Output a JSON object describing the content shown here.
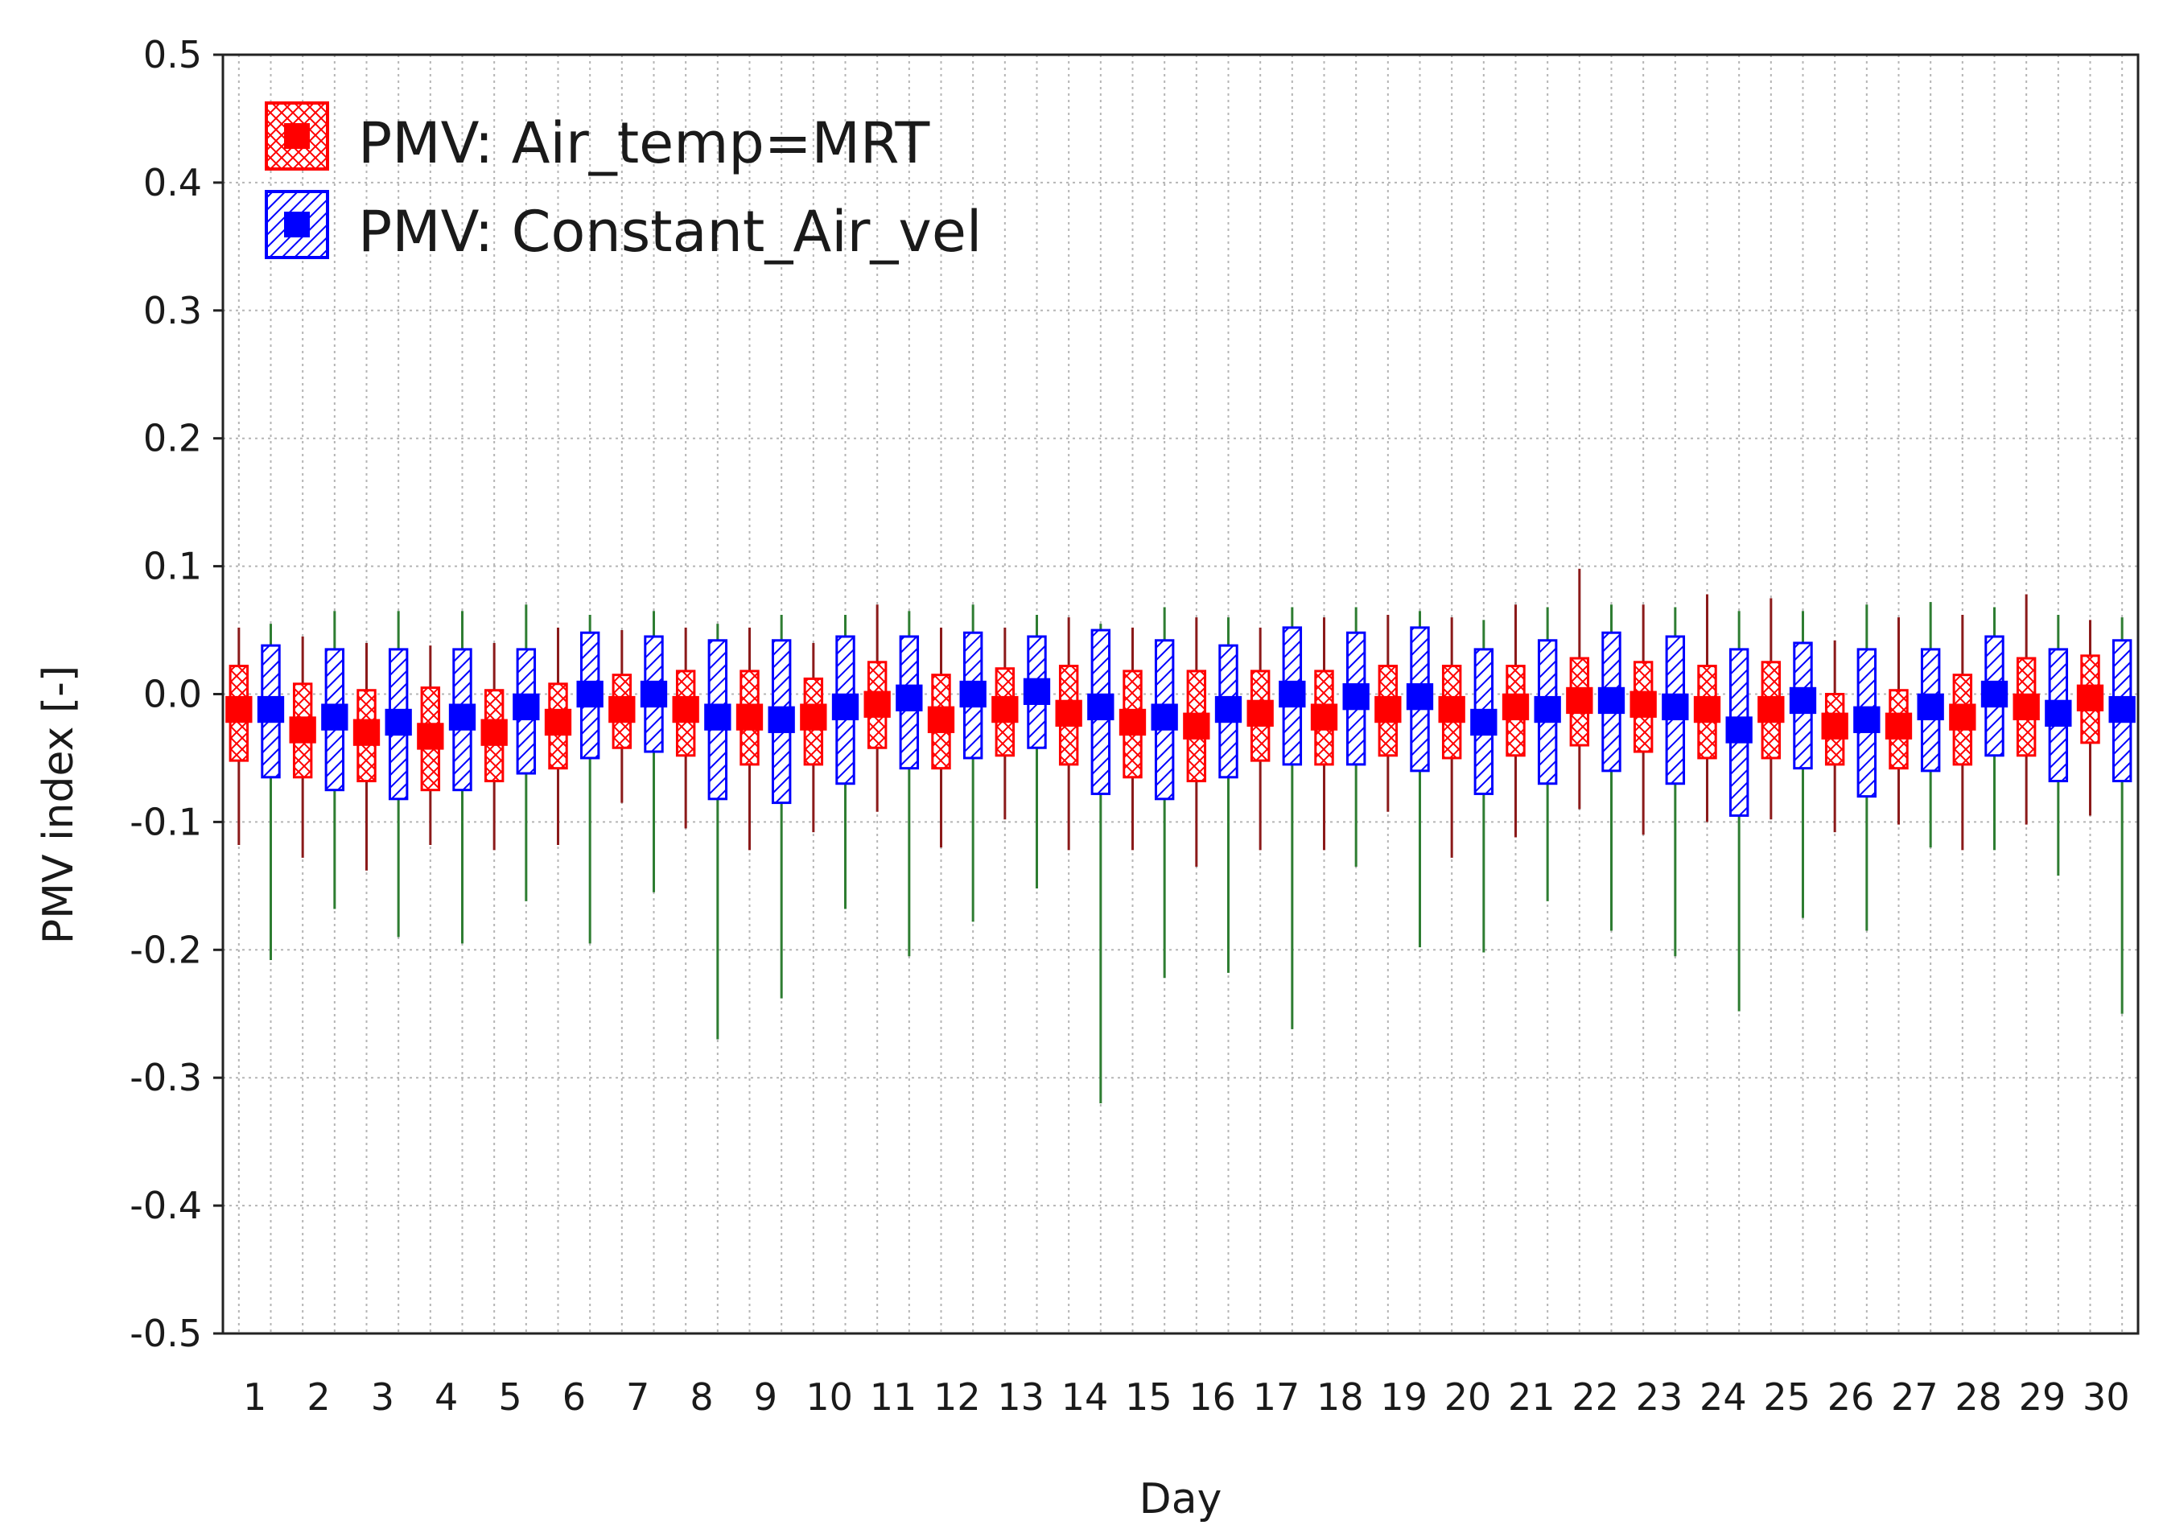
{
  "chart_data": {
    "type": "box",
    "xlabel": "Day",
    "ylabel": "PMV index [-]",
    "ylim": [
      -0.5,
      0.5
    ],
    "yticks": [
      "0.5",
      "0.4",
      "0.3",
      "0.2",
      "0.1",
      "0.0",
      "-0.1",
      "-0.2",
      "-0.3",
      "-0.4",
      "-0.5"
    ],
    "categories": [
      "1",
      "2",
      "3",
      "4",
      "5",
      "6",
      "7",
      "8",
      "9",
      "10",
      "11",
      "12",
      "13",
      "14",
      "15",
      "16",
      "17",
      "18",
      "19",
      "20",
      "21",
      "22",
      "23",
      "24",
      "25",
      "26",
      "27",
      "28",
      "29",
      "30"
    ],
    "grid": true,
    "legend_position": "top-left",
    "series": [
      {
        "name": "PMV: Air_temp=MRT",
        "color": "#ff0000",
        "whisker_color": "#8b1a1a",
        "hatch": "crosshatch",
        "median": [
          -0.012,
          -0.028,
          -0.03,
          -0.033,
          -0.03,
          -0.022,
          -0.012,
          -0.012,
          -0.018,
          -0.018,
          -0.008,
          -0.02,
          -0.012,
          -0.015,
          -0.022,
          -0.025,
          -0.015,
          -0.018,
          -0.012,
          -0.012,
          -0.01,
          -0.005,
          -0.008,
          -0.012,
          -0.012,
          -0.025,
          -0.025,
          -0.018,
          -0.01,
          -0.003
        ],
        "q1": [
          -0.052,
          -0.065,
          -0.068,
          -0.075,
          -0.068,
          -0.058,
          -0.042,
          -0.048,
          -0.055,
          -0.055,
          -0.042,
          -0.058,
          -0.048,
          -0.055,
          -0.065,
          -0.068,
          -0.052,
          -0.055,
          -0.048,
          -0.05,
          -0.048,
          -0.04,
          -0.045,
          -0.05,
          -0.05,
          -0.055,
          -0.058,
          -0.055,
          -0.048,
          -0.038
        ],
        "q3": [
          0.022,
          0.008,
          0.003,
          0.005,
          0.003,
          0.008,
          0.015,
          0.018,
          0.018,
          0.012,
          0.025,
          0.015,
          0.02,
          0.022,
          0.018,
          0.018,
          0.018,
          0.018,
          0.022,
          0.022,
          0.022,
          0.028,
          0.025,
          0.022,
          0.025,
          0.0,
          0.003,
          0.015,
          0.028,
          0.03
        ],
        "min": [
          -0.118,
          -0.128,
          -0.138,
          -0.118,
          -0.122,
          -0.118,
          -0.085,
          -0.105,
          -0.122,
          -0.108,
          -0.092,
          -0.12,
          -0.098,
          -0.122,
          -0.122,
          -0.135,
          -0.122,
          -0.122,
          -0.092,
          -0.128,
          -0.112,
          -0.09,
          -0.11,
          -0.1,
          -0.098,
          -0.108,
          -0.102,
          -0.122,
          -0.102,
          -0.095
        ],
        "max": [
          0.052,
          0.045,
          0.04,
          0.038,
          0.04,
          0.052,
          0.05,
          0.052,
          0.052,
          0.04,
          0.07,
          0.052,
          0.052,
          0.06,
          0.052,
          0.06,
          0.052,
          0.06,
          0.062,
          0.06,
          0.07,
          0.098,
          0.07,
          0.078,
          0.075,
          0.042,
          0.06,
          0.062,
          0.078,
          0.058
        ]
      },
      {
        "name": "PMV: Constant_Air_vel",
        "color": "#0000ff",
        "whisker_color": "#2e7d32",
        "hatch": "diagonal",
        "median": [
          -0.012,
          -0.018,
          -0.022,
          -0.018,
          -0.01,
          0.0,
          0.0,
          -0.018,
          -0.02,
          -0.01,
          -0.003,
          0.0,
          0.002,
          -0.01,
          -0.018,
          -0.012,
          0.0,
          -0.002,
          -0.002,
          -0.022,
          -0.012,
          -0.005,
          -0.01,
          -0.028,
          -0.005,
          -0.02,
          -0.01,
          0.0,
          -0.015,
          -0.012
        ],
        "q1": [
          -0.065,
          -0.075,
          -0.082,
          -0.075,
          -0.062,
          -0.05,
          -0.045,
          -0.082,
          -0.085,
          -0.07,
          -0.058,
          -0.05,
          -0.042,
          -0.078,
          -0.082,
          -0.065,
          -0.055,
          -0.055,
          -0.06,
          -0.078,
          -0.07,
          -0.06,
          -0.07,
          -0.095,
          -0.058,
          -0.08,
          -0.06,
          -0.048,
          -0.068,
          -0.068
        ],
        "q3": [
          0.038,
          0.035,
          0.035,
          0.035,
          0.035,
          0.048,
          0.045,
          0.042,
          0.042,
          0.045,
          0.045,
          0.048,
          0.045,
          0.05,
          0.042,
          0.038,
          0.052,
          0.048,
          0.052,
          0.035,
          0.042,
          0.048,
          0.045,
          0.035,
          0.04,
          0.035,
          0.035,
          0.045,
          0.035,
          0.042
        ],
        "min": [
          -0.208,
          -0.168,
          -0.19,
          -0.195,
          -0.162,
          -0.195,
          -0.155,
          -0.27,
          -0.238,
          -0.168,
          -0.205,
          -0.178,
          -0.152,
          -0.32,
          -0.222,
          -0.218,
          -0.262,
          -0.135,
          -0.198,
          -0.202,
          -0.162,
          -0.185,
          -0.205,
          -0.248,
          -0.175,
          -0.185,
          -0.12,
          -0.122,
          -0.142,
          -0.25
        ],
        "max": [
          0.055,
          0.065,
          0.065,
          0.065,
          0.07,
          0.062,
          0.065,
          0.055,
          0.062,
          0.062,
          0.065,
          0.07,
          0.062,
          0.055,
          0.068,
          0.06,
          0.068,
          0.068,
          0.065,
          0.058,
          0.068,
          0.07,
          0.068,
          0.065,
          0.065,
          0.07,
          0.072,
          0.068,
          0.062,
          0.06
        ]
      }
    ]
  }
}
